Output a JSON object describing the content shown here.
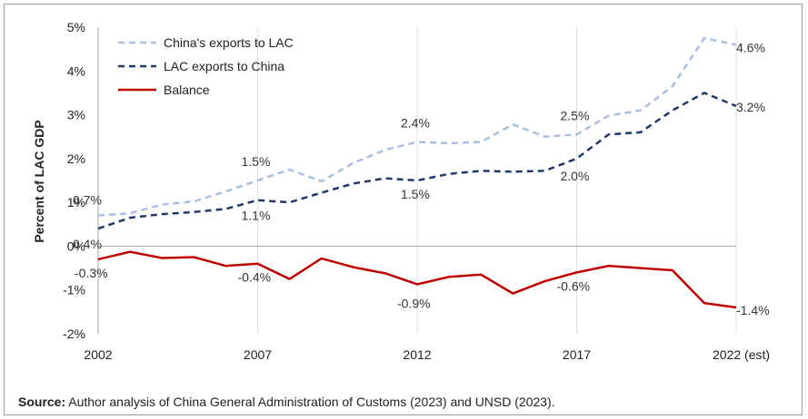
{
  "chart_data": {
    "type": "line",
    "xlabel": "",
    "ylabel": "Percent of LAC GDP",
    "ylim": [
      -2,
      5
    ],
    "yticks": [
      "5%",
      "4%",
      "3%",
      "2%",
      "1%",
      "0%",
      "-1%",
      "-2%"
    ],
    "xticks": [
      {
        "x": 2002,
        "label": "2002"
      },
      {
        "x": 2007,
        "label": "2007"
      },
      {
        "x": 2012,
        "label": "2012"
      },
      {
        "x": 2017,
        "label": "2017"
      },
      {
        "x": 2022,
        "label": "2022 (est)"
      }
    ],
    "x": [
      2002,
      2003,
      2004,
      2005,
      2006,
      2007,
      2008,
      2009,
      2010,
      2011,
      2012,
      2013,
      2014,
      2015,
      2016,
      2017,
      2018,
      2019,
      2020,
      2021,
      2022
    ],
    "series": [
      {
        "name": "China's exports to LAC",
        "color": "#a7c0e4",
        "dash": "dashed",
        "values": [
          0.7,
          0.75,
          0.95,
          1.02,
          1.25,
          1.5,
          1.75,
          1.48,
          1.9,
          2.2,
          2.38,
          2.35,
          2.38,
          2.78,
          2.5,
          2.55,
          2.98,
          3.1,
          3.65,
          4.75,
          4.6
        ]
      },
      {
        "name": "LAC exports to China",
        "color": "#1f3a68",
        "dash": "dashed",
        "values": [
          0.4,
          0.65,
          0.73,
          0.78,
          0.85,
          1.05,
          1.0,
          1.22,
          1.43,
          1.55,
          1.5,
          1.65,
          1.72,
          1.7,
          1.72,
          2.0,
          2.55,
          2.6,
          3.1,
          3.5,
          3.2
        ]
      },
      {
        "name": "Balance",
        "color": "#c00000",
        "dash": "solid",
        "values": [
          -0.3,
          -0.13,
          -0.27,
          -0.25,
          -0.45,
          -0.4,
          -0.75,
          -0.28,
          -0.48,
          -0.62,
          -0.87,
          -0.7,
          -0.65,
          -1.08,
          -0.8,
          -0.6,
          -0.45,
          -0.5,
          -0.55,
          -1.3,
          -1.4
        ]
      }
    ],
    "annotations": [
      {
        "x": 2002,
        "y": 0.7,
        "label": "0.7%",
        "series": 0
      },
      {
        "x": 2007,
        "y": 1.5,
        "label": "1.5%",
        "series": 0
      },
      {
        "x": 2012,
        "y": 2.38,
        "label": "2.4%",
        "series": 0
      },
      {
        "x": 2017,
        "y": 2.55,
        "label": "2.5%",
        "series": 0
      },
      {
        "x": 2022,
        "y": 4.6,
        "label": "4.6%",
        "series": 0
      },
      {
        "x": 2002,
        "y": 0.4,
        "label": "0.4%",
        "series": 1
      },
      {
        "x": 2007,
        "y": 1.05,
        "label": "1.1%",
        "series": 1
      },
      {
        "x": 2012,
        "y": 1.5,
        "label": "1.5%",
        "series": 1
      },
      {
        "x": 2017,
        "y": 2.0,
        "label": "2.0%",
        "series": 1
      },
      {
        "x": 2022,
        "y": 3.2,
        "label": "3.2%",
        "series": 1
      },
      {
        "x": 2002,
        "y": -0.3,
        "label": "-0.3%",
        "series": 2
      },
      {
        "x": 2007,
        "y": -0.4,
        "label": "-0.4%",
        "series": 2
      },
      {
        "x": 2012,
        "y": -0.87,
        "label": "-0.9%",
        "series": 2
      },
      {
        "x": 2017,
        "y": -0.6,
        "label": "-0.6%",
        "series": 2
      },
      {
        "x": 2022,
        "y": -1.4,
        "label": "-1.4%",
        "series": 2
      }
    ],
    "grid": {
      "vertical": true,
      "horizontal": false
    },
    "legend_position": "top-left"
  },
  "source": {
    "prefix": "Source:",
    "text": " Author analysis of China General Administration of Customs (2023) and UNSD (2023)."
  }
}
